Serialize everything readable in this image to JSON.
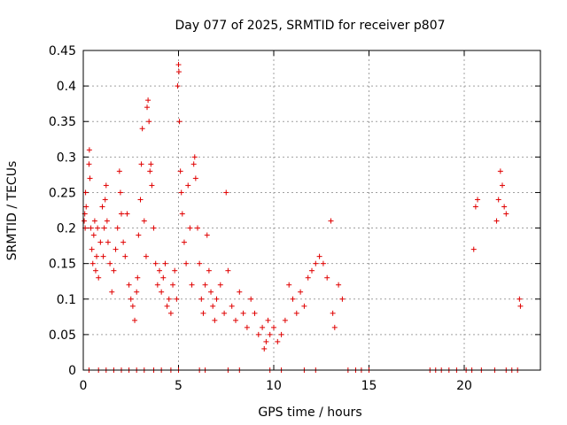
{
  "chart_data": {
    "type": "scatter",
    "title": "Day 077 of 2025, SRMTID for receiver p807",
    "xlabel": "GPS time / hours",
    "ylabel": "SRMTID / TECUs",
    "xlim": [
      0,
      24
    ],
    "ylim": [
      0,
      0.45
    ],
    "xticks": [
      0,
      5,
      10,
      15,
      20
    ],
    "yticks": [
      0,
      0.05,
      0.1,
      0.15,
      0.2,
      0.25,
      0.3,
      0.35,
      0.4,
      0.45
    ],
    "xtick_labels": [
      "0",
      "5",
      "10",
      "15",
      "20"
    ],
    "ytick_labels": [
      "0",
      "0.05",
      "0.1",
      "0.15",
      "0.2",
      "0.25",
      "0.3",
      "0.35",
      "0.4",
      "0.45"
    ],
    "grid": true,
    "marker": "+",
    "color": "#e00000",
    "series": [
      {
        "name": "SRMTID",
        "points": [
          [
            0.05,
            0.21
          ],
          [
            0.08,
            0.22
          ],
          [
            0.1,
            0.2
          ],
          [
            0.12,
            0.25
          ],
          [
            0.15,
            0.23
          ],
          [
            0.3,
            0.29
          ],
          [
            0.32,
            0.31
          ],
          [
            0.35,
            0.27
          ],
          [
            0.4,
            0.2
          ],
          [
            0.45,
            0.17
          ],
          [
            0.5,
            0.15
          ],
          [
            0.55,
            0.19
          ],
          [
            0.6,
            0.21
          ],
          [
            0.65,
            0.14
          ],
          [
            0.7,
            0.16
          ],
          [
            0.75,
            0.2
          ],
          [
            0.8,
            0.13
          ],
          [
            0.9,
            0.18
          ],
          [
            1.0,
            0.23
          ],
          [
            1.05,
            0.16
          ],
          [
            1.1,
            0.2
          ],
          [
            1.15,
            0.24
          ],
          [
            1.2,
            0.26
          ],
          [
            1.25,
            0.21
          ],
          [
            1.3,
            0.18
          ],
          [
            1.4,
            0.15
          ],
          [
            1.5,
            0.11
          ],
          [
            1.6,
            0.14
          ],
          [
            1.7,
            0.17
          ],
          [
            1.8,
            0.2
          ],
          [
            1.9,
            0.28
          ],
          [
            1.95,
            0.25
          ],
          [
            2.0,
            0.22
          ],
          [
            2.1,
            0.18
          ],
          [
            2.2,
            0.16
          ],
          [
            2.3,
            0.22
          ],
          [
            2.4,
            0.12
          ],
          [
            2.5,
            0.1
          ],
          [
            2.6,
            0.09
          ],
          [
            2.7,
            0.07
          ],
          [
            2.8,
            0.11
          ],
          [
            2.85,
            0.13
          ],
          [
            2.9,
            0.19
          ],
          [
            3.0,
            0.24
          ],
          [
            3.05,
            0.29
          ],
          [
            3.1,
            0.34
          ],
          [
            3.2,
            0.21
          ],
          [
            3.3,
            0.16
          ],
          [
            3.35,
            0.37
          ],
          [
            3.4,
            0.38
          ],
          [
            3.45,
            0.35
          ],
          [
            3.5,
            0.28
          ],
          [
            3.55,
            0.29
          ],
          [
            3.6,
            0.26
          ],
          [
            3.7,
            0.2
          ],
          [
            3.8,
            0.15
          ],
          [
            3.9,
            0.12
          ],
          [
            4.0,
            0.14
          ],
          [
            4.1,
            0.11
          ],
          [
            4.2,
            0.13
          ],
          [
            4.3,
            0.15
          ],
          [
            4.4,
            0.09
          ],
          [
            4.5,
            0.1
          ],
          [
            4.6,
            0.08
          ],
          [
            4.7,
            0.12
          ],
          [
            4.8,
            0.14
          ],
          [
            4.9,
            0.1
          ],
          [
            4.95,
            0.4
          ],
          [
            5.0,
            0.43
          ],
          [
            5.02,
            0.42
          ],
          [
            5.05,
            0.35
          ],
          [
            5.1,
            0.28
          ],
          [
            5.15,
            0.25
          ],
          [
            5.2,
            0.22
          ],
          [
            5.3,
            0.18
          ],
          [
            5.4,
            0.15
          ],
          [
            5.5,
            0.26
          ],
          [
            5.6,
            0.2
          ],
          [
            5.7,
            0.12
          ],
          [
            5.8,
            0.29
          ],
          [
            5.85,
            0.3
          ],
          [
            5.9,
            0.27
          ],
          [
            6.0,
            0.2
          ],
          [
            6.1,
            0.15
          ],
          [
            6.2,
            0.1
          ],
          [
            6.3,
            0.08
          ],
          [
            6.4,
            0.12
          ],
          [
            6.5,
            0.19
          ],
          [
            6.6,
            0.14
          ],
          [
            6.7,
            0.11
          ],
          [
            6.8,
            0.09
          ],
          [
            6.9,
            0.07
          ],
          [
            7.0,
            0.1
          ],
          [
            7.2,
            0.12
          ],
          [
            7.4,
            0.08
          ],
          [
            7.5,
            0.25
          ],
          [
            7.6,
            0.14
          ],
          [
            7.8,
            0.09
          ],
          [
            8.0,
            0.07
          ],
          [
            8.2,
            0.11
          ],
          [
            8.4,
            0.08
          ],
          [
            8.6,
            0.06
          ],
          [
            8.8,
            0.1
          ],
          [
            9.0,
            0.08
          ],
          [
            9.2,
            0.05
          ],
          [
            9.4,
            0.06
          ],
          [
            9.5,
            0.03
          ],
          [
            9.6,
            0.04
          ],
          [
            9.7,
            0.07
          ],
          [
            9.8,
            0.05
          ],
          [
            10.0,
            0.06
          ],
          [
            10.2,
            0.04
          ],
          [
            10.4,
            0.05
          ],
          [
            10.6,
            0.07
          ],
          [
            10.8,
            0.12
          ],
          [
            11.0,
            0.1
          ],
          [
            11.2,
            0.08
          ],
          [
            11.4,
            0.11
          ],
          [
            11.6,
            0.09
          ],
          [
            11.8,
            0.13
          ],
          [
            12.0,
            0.14
          ],
          [
            12.2,
            0.15
          ],
          [
            12.4,
            0.16
          ],
          [
            12.6,
            0.15
          ],
          [
            12.8,
            0.13
          ],
          [
            13.0,
            0.21
          ],
          [
            13.1,
            0.08
          ],
          [
            13.2,
            0.06
          ],
          [
            13.4,
            0.12
          ],
          [
            13.6,
            0.1
          ],
          [
            20.5,
            0.17
          ],
          [
            20.6,
            0.23
          ],
          [
            20.7,
            0.24
          ],
          [
            21.7,
            0.21
          ],
          [
            21.8,
            0.24
          ],
          [
            21.9,
            0.28
          ],
          [
            22.0,
            0.26
          ],
          [
            22.1,
            0.23
          ],
          [
            22.2,
            0.22
          ],
          [
            22.9,
            0.1
          ],
          [
            22.95,
            0.09
          ],
          [
            0.3,
            0
          ],
          [
            0.8,
            0
          ],
          [
            1.2,
            0
          ],
          [
            1.6,
            0
          ],
          [
            2.0,
            0
          ],
          [
            2.4,
            0
          ],
          [
            2.8,
            0
          ],
          [
            3.2,
            0
          ],
          [
            3.7,
            0
          ],
          [
            4.1,
            0
          ],
          [
            4.6,
            0
          ],
          [
            5.0,
            0
          ],
          [
            6.1,
            0
          ],
          [
            6.4,
            0
          ],
          [
            7.6,
            0
          ],
          [
            8.2,
            0
          ],
          [
            9.8,
            0
          ],
          [
            10.4,
            0
          ],
          [
            11.6,
            0
          ],
          [
            12.2,
            0
          ],
          [
            13.9,
            0
          ],
          [
            14.3,
            0
          ],
          [
            14.6,
            0
          ],
          [
            15.0,
            0
          ],
          [
            18.2,
            0
          ],
          [
            18.5,
            0
          ],
          [
            18.8,
            0
          ],
          [
            19.2,
            0
          ],
          [
            19.6,
            0
          ],
          [
            20.1,
            0
          ],
          [
            20.4,
            0
          ],
          [
            20.9,
            0
          ],
          [
            21.6,
            0
          ],
          [
            22.2,
            0
          ],
          [
            22.5,
            0
          ],
          [
            22.8,
            0
          ]
        ]
      }
    ]
  }
}
